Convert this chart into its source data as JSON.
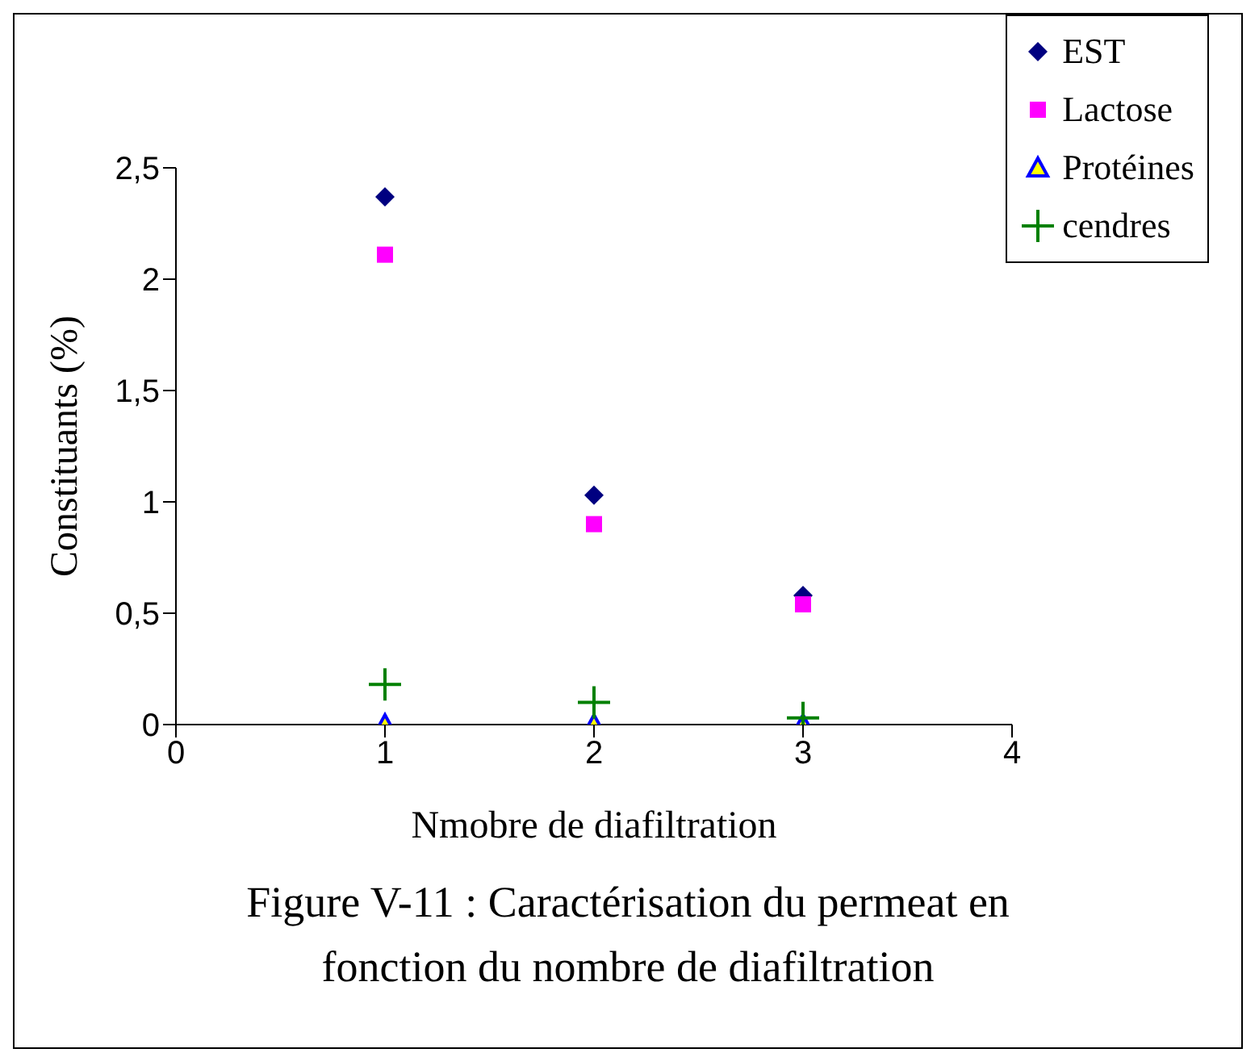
{
  "chart_data": {
    "type": "scatter",
    "xlabel": "Nmobre de diafiltration",
    "ylabel": "Constituants (%)",
    "x": [
      1,
      2,
      3
    ],
    "series": [
      {
        "name": "EST",
        "color": "#000080",
        "marker": "diamond",
        "values": [
          2.37,
          1.03,
          0.58
        ]
      },
      {
        "name": "Lactose",
        "color": "#ff00ff",
        "marker": "square",
        "values": [
          2.11,
          0.9,
          0.54
        ]
      },
      {
        "name": "Protéines",
        "color": "#0000ff",
        "marker": "triangle",
        "values": [
          0,
          0,
          0
        ]
      },
      {
        "name": "cendres",
        "color": "#008000",
        "marker": "cross",
        "values": [
          0.18,
          0.1,
          0.03
        ]
      }
    ],
    "xlim": [
      0,
      4
    ],
    "xticks": [
      0,
      1,
      2,
      3,
      4
    ],
    "ylim": [
      0,
      2.5
    ],
    "yticks": [
      0,
      {
        "value": 0.5,
        "label": "0,5"
      },
      1,
      {
        "value": 1.5,
        "label": "1,5"
      },
      2,
      {
        "value": 2.5,
        "label": "2,5"
      }
    ],
    "grid": false,
    "legend": "top right",
    "annotations": [
      "Figure V-11 : Caractérisation du permeat en fonction du nombre de diafiltration"
    ]
  }
}
